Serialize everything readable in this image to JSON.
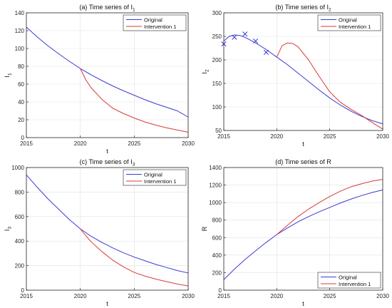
{
  "chart_data": [
    {
      "type": "line",
      "title_main": "(a) Time series of I",
      "title_sub": "1",
      "xlabel": "t",
      "ylabel_main": "I",
      "ylabel_sub": "1",
      "xlim": [
        2015,
        2030
      ],
      "ylim": [
        0,
        140
      ],
      "xticks": [
        2015,
        2020,
        2025,
        2030
      ],
      "yticks": [
        0,
        20,
        40,
        60,
        80,
        100,
        120,
        140
      ],
      "grid": true,
      "legend_position": "top-right",
      "legend": [
        "Original",
        "Intervention 1"
      ],
      "colors": [
        "#3a3ad6",
        "#d83a3a"
      ],
      "series": [
        {
          "name": "Original",
          "x": [
            2015,
            2016,
            2017,
            2018,
            2019,
            2020,
            2021,
            2022,
            2023,
            2024,
            2025,
            2026,
            2027,
            2028,
            2029,
            2030
          ],
          "values": [
            124,
            113,
            103,
            94,
            85.5,
            77.5,
            70.5,
            64,
            58,
            52.5,
            47.5,
            42.5,
            38,
            34,
            30,
            23
          ]
        },
        {
          "name": "Intervention 1",
          "x": [
            2020,
            2020.5,
            2021,
            2022,
            2023,
            2024,
            2025,
            2026,
            2027,
            2028,
            2029,
            2030
          ],
          "values": [
            77.5,
            65,
            56,
            43,
            33,
            27,
            22,
            17.5,
            14,
            11,
            8.5,
            6
          ]
        }
      ]
    },
    {
      "type": "line",
      "title_main": "(b) Time series of I",
      "title_sub": "2",
      "xlabel": "t",
      "ylabel_main": "I",
      "ylabel_sub": "2",
      "xlim": [
        2015,
        2030
      ],
      "ylim": [
        50,
        300
      ],
      "xticks": [
        2015,
        2020,
        2025,
        2030
      ],
      "yticks": [
        50,
        100,
        150,
        200,
        250,
        300
      ],
      "grid": true,
      "legend_position": "top-right",
      "legend": [
        "Original",
        "Intervention 1"
      ],
      "colors": [
        "#3a3ad6",
        "#d83a3a"
      ],
      "series": [
        {
          "name": "Original",
          "x": [
            2015,
            2015.5,
            2016,
            2016.5,
            2017,
            2018,
            2019,
            2020,
            2021,
            2022,
            2023,
            2024,
            2025,
            2026,
            2027,
            2028,
            2029,
            2030
          ],
          "values": [
            240,
            250,
            253,
            252,
            248,
            236,
            222,
            206,
            190,
            172,
            154,
            136,
            119,
            104,
            91,
            80,
            71,
            64
          ]
        },
        {
          "name": "Intervention 1",
          "x": [
            2020,
            2020.5,
            2021,
            2021.5,
            2022,
            2023,
            2024,
            2025,
            2026,
            2027,
            2028,
            2029,
            2030
          ],
          "values": [
            206,
            230,
            236,
            235,
            228,
            200,
            165,
            132,
            110,
            95,
            82,
            67,
            53
          ]
        }
      ],
      "markers": {
        "name": "data",
        "x": [
          2015,
          2016,
          2017,
          2018,
          2019
        ],
        "values": [
          234,
          248,
          255,
          240,
          216
        ]
      }
    },
    {
      "type": "line",
      "title_main": "(c) Time series of I",
      "title_sub": "3",
      "xlabel": "t",
      "ylabel_main": "I",
      "ylabel_sub": "3",
      "xlim": [
        2015,
        2030
      ],
      "ylim": [
        0,
        1000
      ],
      "xticks": [
        2015,
        2020,
        2025,
        2030
      ],
      "yticks": [
        0,
        200,
        400,
        600,
        800,
        1000
      ],
      "grid": true,
      "legend_position": "top-right",
      "legend": [
        "Original",
        "Intervention 1"
      ],
      "colors": [
        "#3a3ad6",
        "#d83a3a"
      ],
      "series": [
        {
          "name": "Original",
          "x": [
            2015,
            2016,
            2017,
            2018,
            2019,
            2020,
            2021,
            2022,
            2023,
            2024,
            2025,
            2026,
            2027,
            2028,
            2029,
            2030
          ],
          "values": [
            940,
            840,
            745,
            660,
            575,
            500,
            440,
            390,
            345,
            305,
            270,
            240,
            210,
            185,
            160,
            140
          ]
        },
        {
          "name": "Intervention 1",
          "x": [
            2020,
            2020.5,
            2021,
            2022,
            2023,
            2024,
            2025,
            2026,
            2027,
            2028,
            2029,
            2030
          ],
          "values": [
            500,
            445,
            395,
            315,
            245,
            190,
            145,
            115,
            90,
            70,
            50,
            35
          ]
        }
      ]
    },
    {
      "type": "line",
      "title_main": "(d) Time series of R",
      "title_sub": "",
      "xlabel": "t",
      "ylabel_main": "R",
      "ylabel_sub": "",
      "xlim": [
        2015,
        2030
      ],
      "ylim": [
        0,
        1400
      ],
      "xticks": [
        2015,
        2020,
        2025,
        2030
      ],
      "yticks": [
        0,
        200,
        400,
        600,
        800,
        1000,
        1200,
        1400
      ],
      "grid": true,
      "legend_position": "bottom-right",
      "legend": [
        "Original",
        "Intervention 1"
      ],
      "colors": [
        "#3a3ad6",
        "#d83a3a"
      ],
      "series": [
        {
          "name": "Original",
          "x": [
            2015,
            2016,
            2017,
            2018,
            2019,
            2020,
            2021,
            2022,
            2023,
            2024,
            2025,
            2026,
            2027,
            2028,
            2029,
            2030
          ],
          "values": [
            120,
            240,
            350,
            450,
            545,
            635,
            710,
            780,
            840,
            895,
            945,
            995,
            1040,
            1080,
            1115,
            1145
          ]
        },
        {
          "name": "Intervention 1",
          "x": [
            2020,
            2021,
            2022,
            2023,
            2024,
            2025,
            2026,
            2027,
            2028,
            2029,
            2030
          ],
          "values": [
            635,
            740,
            840,
            925,
            1000,
            1070,
            1130,
            1180,
            1215,
            1245,
            1265
          ]
        }
      ]
    }
  ]
}
